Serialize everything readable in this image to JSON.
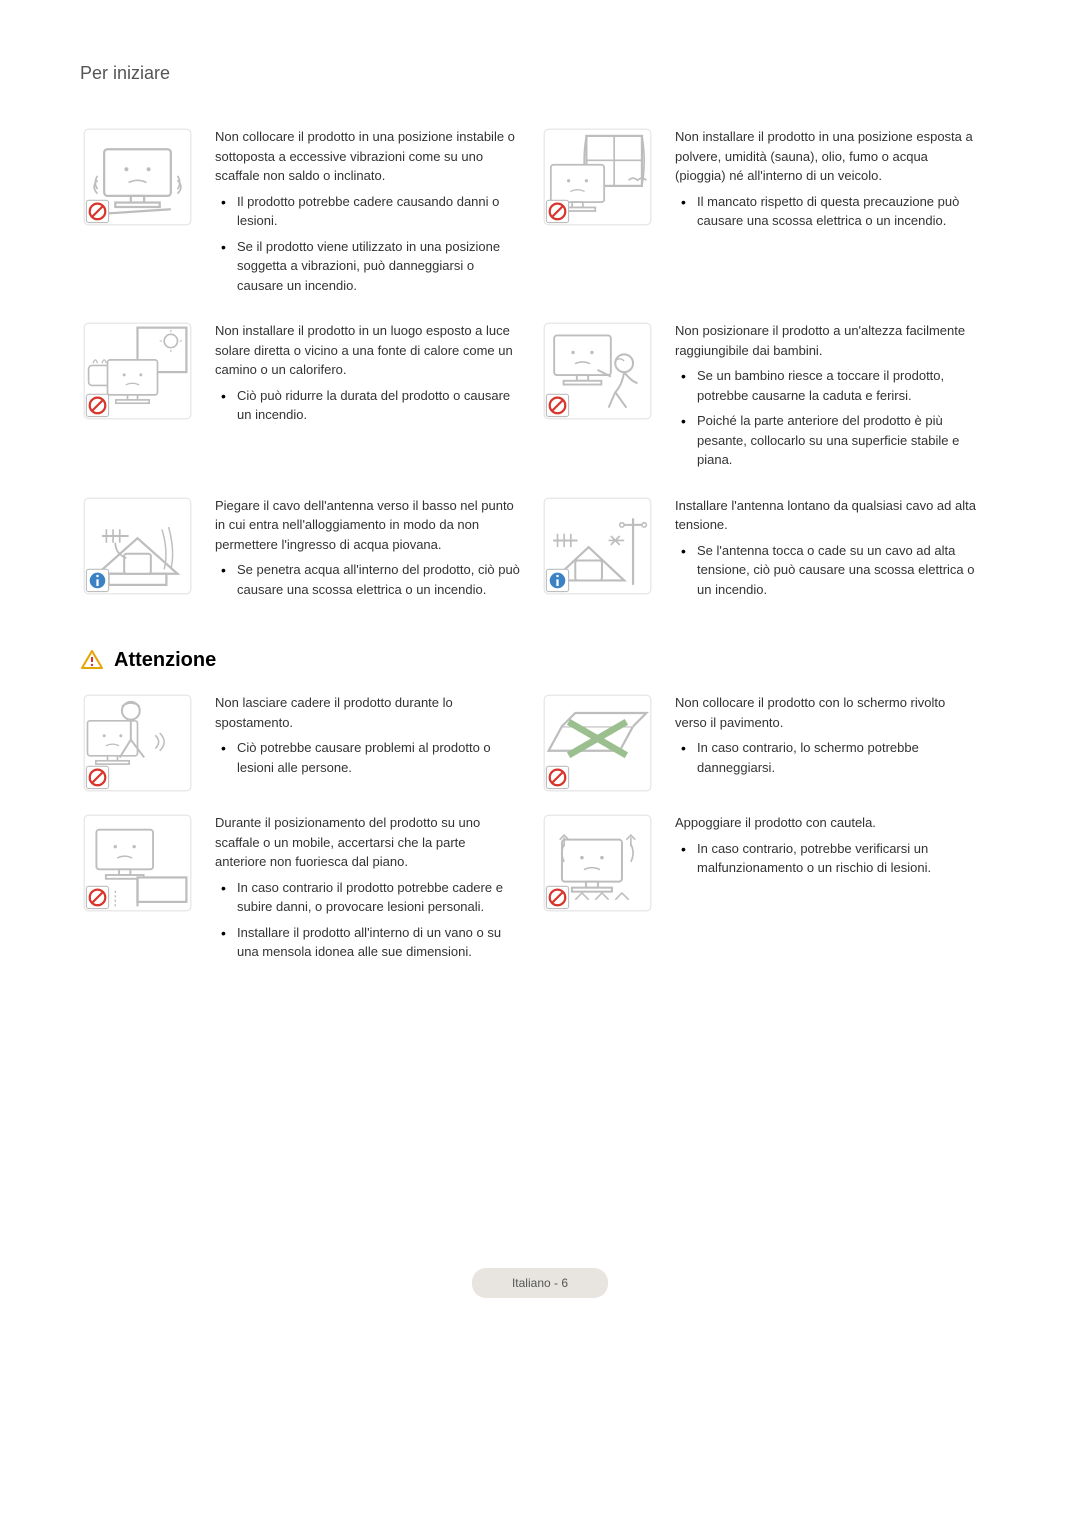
{
  "header": "Per iniziare",
  "attention_heading": "Attenzione",
  "footer": "Italiano - 6",
  "colors": {
    "prohibit_stroke": "#d9342b",
    "info_fill": "#3b82c4",
    "icon_stroke": "#bdbdbd",
    "warn_stroke": "#e6a400",
    "warn_bang": "#d9342b",
    "text": "#333333"
  },
  "blocks_top": [
    {
      "icon": "unstable",
      "badge": "prohibit",
      "intro": "Non collocare il prodotto in una posizione instabile o sottoposta a eccessive vibrazioni come su uno scaffale non saldo o inclinato.",
      "bullets": [
        "Il prodotto potrebbe cadere causando danni o lesioni.",
        "Se il prodotto viene utilizzato in una posizione soggetta a vibrazioni, può danneggiarsi o causare un incendio."
      ]
    },
    {
      "icon": "curtain",
      "badge": "prohibit",
      "intro": "Non installare il prodotto in una posizione esposta a polvere, umidità (sauna), olio, fumo o acqua (pioggia) né all'interno di un veicolo.",
      "bullets": [
        "Il mancato rispetto di questa precauzione può causare una scossa elettrica o un incendio."
      ]
    },
    {
      "icon": "sun-heat",
      "badge": "prohibit",
      "intro": "Non installare il prodotto in un luogo esposto a luce solare diretta o vicino a una fonte di calore come un camino o un calorifero.",
      "bullets": [
        "Ciò può ridurre la durata del prodotto o causare un incendio."
      ]
    },
    {
      "icon": "child-reach",
      "badge": "prohibit",
      "intro": "Non posizionare il prodotto a un'altezza facilmente raggiungibile dai bambini.",
      "bullets": [
        "Se un bambino riesce a toccare il prodotto, potrebbe causarne la caduta e ferirsi.",
        "Poiché la parte anteriore del prodotto è più pesante, collocarlo su una superficie stabile e piana."
      ]
    },
    {
      "icon": "antenna-down",
      "badge": "info",
      "intro": "Piegare il cavo dell'antenna verso il basso nel punto in cui entra nell'alloggiamento in modo da non permettere l'ingresso di acqua piovana.",
      "bullets": [
        "Se penetra acqua all'interno del prodotto, ciò può causare una scossa elettrica o un incendio."
      ]
    },
    {
      "icon": "antenna-hv",
      "badge": "info",
      "intro": "Installare l'antenna lontano da qualsiasi cavo ad alta tensione.",
      "bullets": [
        "Se l'antenna tocca o cade su un cavo ad alta tensione, ciò può causare una scossa elettrica o un incendio."
      ]
    }
  ],
  "blocks_bottom": [
    {
      "icon": "carry-drop",
      "badge": "prohibit",
      "intro": "Non lasciare cadere il prodotto durante lo spostamento.",
      "bullets": [
        "Ciò potrebbe causare problemi al prodotto o lesioni alle persone."
      ]
    },
    {
      "icon": "facedown",
      "badge": "prohibit",
      "intro": "Non collocare il prodotto con lo schermo rivolto verso il pavimento.",
      "bullets": [
        "In caso contrario, lo schermo potrebbe danneggiarsi."
      ]
    },
    {
      "icon": "shelf-edge",
      "badge": "prohibit",
      "intro": "Durante il posizionamento del prodotto su uno scaffale o un mobile, accertarsi che la parte anteriore non fuoriesca dal piano.",
      "bullets": [
        "In caso contrario il prodotto potrebbe cadere e subire danni, o provocare lesioni personali.",
        "Installare il prodotto all'interno di un vano o su una mensola idonea alle sue dimensioni."
      ]
    },
    {
      "icon": "put-down",
      "badge": "prohibit",
      "intro": "Appoggiare il prodotto con cautela.",
      "bullets": [
        "In caso contrario, potrebbe verificarsi un malfunzionamento o un rischio di lesioni."
      ]
    }
  ]
}
